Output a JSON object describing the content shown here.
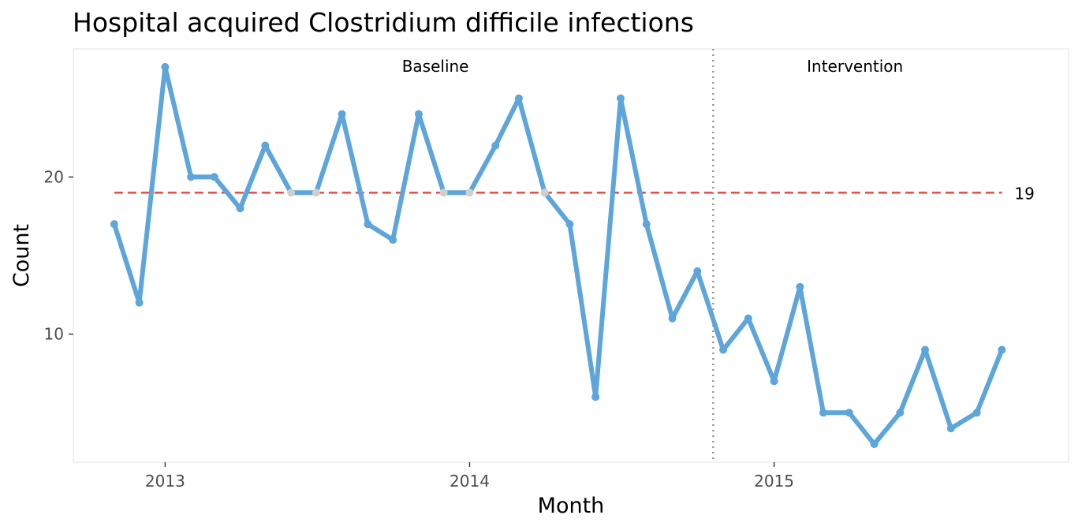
{
  "chart_data": {
    "type": "line",
    "title": "Hospital acquired Clostridium difficile infections",
    "xlabel": "Month",
    "ylabel": "Count",
    "x_ticks": [
      {
        "label": "2013",
        "value": "2013-01-01"
      },
      {
        "label": "2014",
        "value": "2014-01-01"
      },
      {
        "label": "2015",
        "value": "2015-01-01"
      }
    ],
    "y_ticks": [
      10,
      20
    ],
    "xlim": [
      "2012-09-13",
      "2015-12-20"
    ],
    "ylim": [
      1.85,
      28.15
    ],
    "grid": false,
    "series": [
      {
        "color": "#5da5da",
        "x": [
          "2012-11-01",
          "2012-12-01",
          "2013-01-01",
          "2013-02-01",
          "2013-03-01",
          "2013-04-01",
          "2013-05-01",
          "2013-06-01",
          "2013-07-01",
          "2013-08-01",
          "2013-09-01",
          "2013-10-01",
          "2013-11-01",
          "2013-12-01",
          "2014-01-01",
          "2014-02-01",
          "2014-03-01",
          "2014-04-01",
          "2014-05-01",
          "2014-06-01",
          "2014-07-01",
          "2014-08-01",
          "2014-09-01",
          "2014-10-01",
          "2014-11-01",
          "2014-12-01",
          "2015-01-01",
          "2015-02-01",
          "2015-03-01",
          "2015-04-01",
          "2015-05-01",
          "2015-06-01",
          "2015-07-01",
          "2015-08-01",
          "2015-09-01",
          "2015-10-01"
        ],
        "values": [
          17,
          12,
          27,
          20,
          20,
          18,
          22,
          19,
          19,
          24,
          17,
          16,
          24,
          19,
          19,
          22,
          25,
          19,
          17,
          6,
          25,
          17,
          11,
          14,
          9,
          11,
          7,
          13,
          5,
          5,
          3,
          5,
          9,
          4,
          5,
          9
        ],
        "highlight_color": "#cfcfcf",
        "highlighted_x": [
          "2013-06-01",
          "2013-07-01",
          "2013-12-01",
          "2014-01-01",
          "2014-04-01"
        ]
      }
    ],
    "centre_line": {
      "value": 19,
      "label": "19",
      "color": "#e5544b",
      "x_from": "2012-11-01",
      "x_to": "2015-10-01"
    },
    "phase_split": {
      "x": "2014-10-20",
      "color": "#999999"
    },
    "phases": [
      {
        "label": "Baseline",
        "x_center": "2013-11-21"
      },
      {
        "label": "Intervention",
        "x_center": "2015-04-08"
      }
    ]
  }
}
